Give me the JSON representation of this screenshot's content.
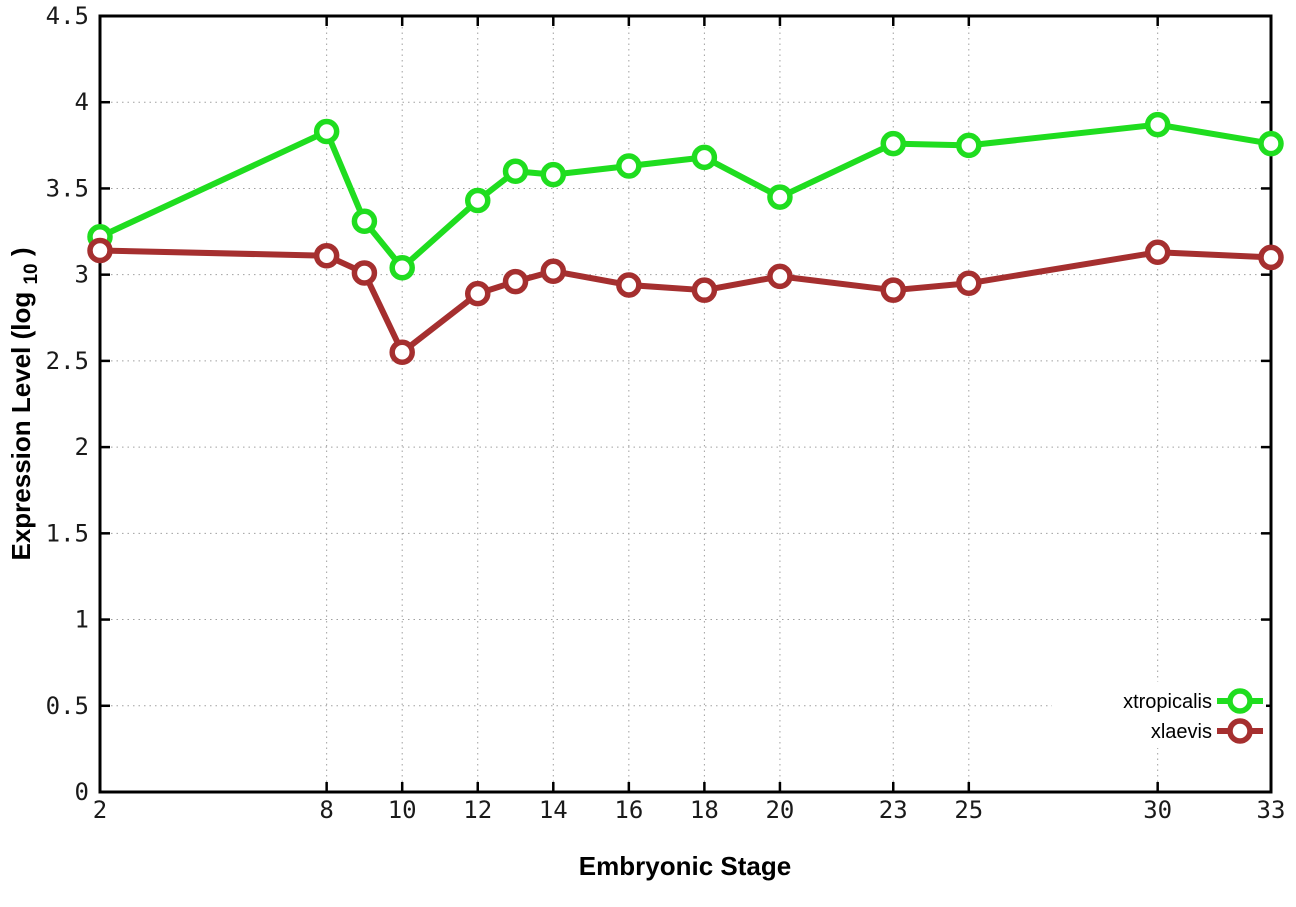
{
  "page": {
    "background": "#ffffff"
  },
  "chart_data": {
    "type": "line",
    "title": "",
    "xlabel": "Embryonic Stage",
    "ylabel": "Expression Level (log10)",
    "ylabel_parts": {
      "main": "Expression Level (log",
      "sub": "10",
      "end": ")"
    },
    "xlim": [
      2,
      33
    ],
    "ylim": [
      0,
      4.5
    ],
    "grid": true,
    "grid_style": "dotted",
    "legend_position": "bottom-right",
    "marker": "open-circle",
    "axis_color": "#000000",
    "grid_color": "#a0a0a0",
    "xtick_labels": [
      "2",
      "8",
      "10",
      "12",
      "14",
      "16",
      "18",
      "20",
      "23",
      "25",
      "30",
      "33"
    ],
    "xtick_values": [
      2,
      8,
      10,
      12,
      14,
      16,
      18,
      20,
      23,
      25,
      30,
      33
    ],
    "ytick_labels": [
      "0",
      "0.5",
      "1",
      "1.5",
      "2",
      "2.5",
      "3",
      "3.5",
      "4",
      "4.5"
    ],
    "ytick_values": [
      0,
      0.5,
      1,
      1.5,
      2,
      2.5,
      3,
      3.5,
      4,
      4.5
    ],
    "x": [
      2,
      8,
      9,
      10,
      12,
      13,
      14,
      16,
      18,
      20,
      23,
      25,
      30,
      33
    ],
    "series": [
      {
        "name": "xtropicalis",
        "color": "#1fdd1f",
        "values": [
          3.22,
          3.83,
          3.31,
          3.04,
          3.43,
          3.6,
          3.58,
          3.63,
          3.68,
          3.45,
          3.76,
          3.75,
          3.87,
          3.76
        ]
      },
      {
        "name": "xlaevis",
        "color": "#a52f2f",
        "values": [
          3.14,
          3.11,
          3.01,
          2.55,
          2.89,
          2.96,
          3.02,
          2.94,
          2.91,
          2.99,
          2.91,
          2.95,
          3.13,
          3.1
        ]
      }
    ]
  }
}
